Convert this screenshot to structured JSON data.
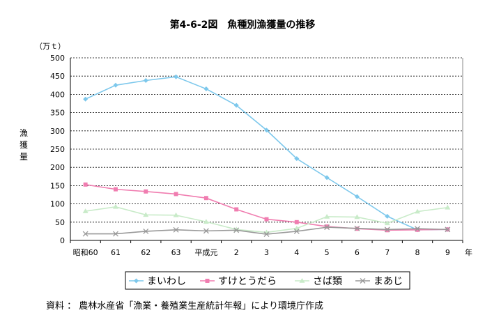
{
  "chart_data": {
    "type": "line",
    "title": "第4-6-2図　魚種別漁獲量の推移",
    "unit_label": "（万ｔ）",
    "ylabel": "漁獲量",
    "xlabel_suffix": "年",
    "categories": [
      "昭和60",
      "61",
      "62",
      "63",
      "平成元",
      "2",
      "3",
      "4",
      "5",
      "6",
      "7",
      "8",
      "9"
    ],
    "ylim": [
      0,
      500
    ],
    "yticks": [
      0,
      50,
      100,
      150,
      200,
      250,
      300,
      350,
      400,
      450,
      500
    ],
    "grid": true,
    "legend_position": "bottom",
    "series": [
      {
        "name": "まいわし",
        "color": "#7dc8ec",
        "marker": "diamond",
        "values": [
          387,
          425,
          438,
          448,
          415,
          370,
          302,
          224,
          172,
          120,
          66,
          29,
          30
        ]
      },
      {
        "name": "すけとうだら",
        "color": "#f07db0",
        "marker": "square",
        "values": [
          153,
          140,
          134,
          127,
          116,
          85,
          58,
          50,
          38,
          32,
          28,
          29,
          30
        ]
      },
      {
        "name": "さば類",
        "color": "#c9ebc9",
        "marker": "triangle",
        "values": [
          80,
          92,
          70,
          69,
          51,
          30,
          22,
          33,
          65,
          64,
          47,
          79,
          90
        ]
      },
      {
        "name": "まあじ",
        "color": "#999999",
        "marker": "x",
        "values": [
          18,
          18,
          25,
          29,
          26,
          28,
          17,
          25,
          36,
          33,
          30,
          32,
          30
        ]
      }
    ]
  },
  "source_note": "資料 ： 農林水産省「漁業・養殖業生産統計年報」により環境庁作成"
}
